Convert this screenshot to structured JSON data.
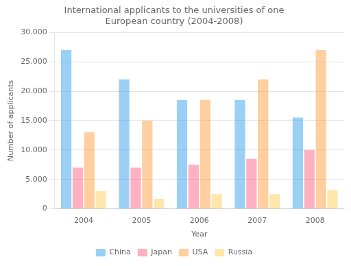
{
  "chart_data": {
    "type": "bar",
    "title": "International applicants to the universities of one\nEuropean country (2004-2008)",
    "xlabel": "Year",
    "ylabel": "Number of applicants",
    "categories": [
      "2004",
      "2005",
      "2006",
      "2007",
      "2008"
    ],
    "series": [
      {
        "name": "China",
        "values": [
          27000,
          22000,
          18500,
          18500,
          15500
        ]
      },
      {
        "name": "Japan",
        "values": [
          7000,
          7000,
          7500,
          8500,
          10000
        ]
      },
      {
        "name": "USA",
        "values": [
          13000,
          15000,
          18500,
          22000,
          27000
        ]
      },
      {
        "name": "Russia",
        "values": [
          3000,
          1700,
          2500,
          2500,
          3200
        ]
      }
    ],
    "ylim": [
      0,
      30000
    ],
    "yticks": [
      0,
      {
        "value": 5000,
        "label": "5.000"
      },
      {
        "value": 10000,
        "label": "10.000"
      },
      {
        "value": 15000,
        "label": "15.000"
      },
      {
        "value": 20000,
        "label": "20.000"
      },
      {
        "value": 25000,
        "label": "25.000"
      },
      {
        "value": 30000,
        "label": "30.000"
      }
    ],
    "grid": true,
    "legend": "bottom"
  }
}
